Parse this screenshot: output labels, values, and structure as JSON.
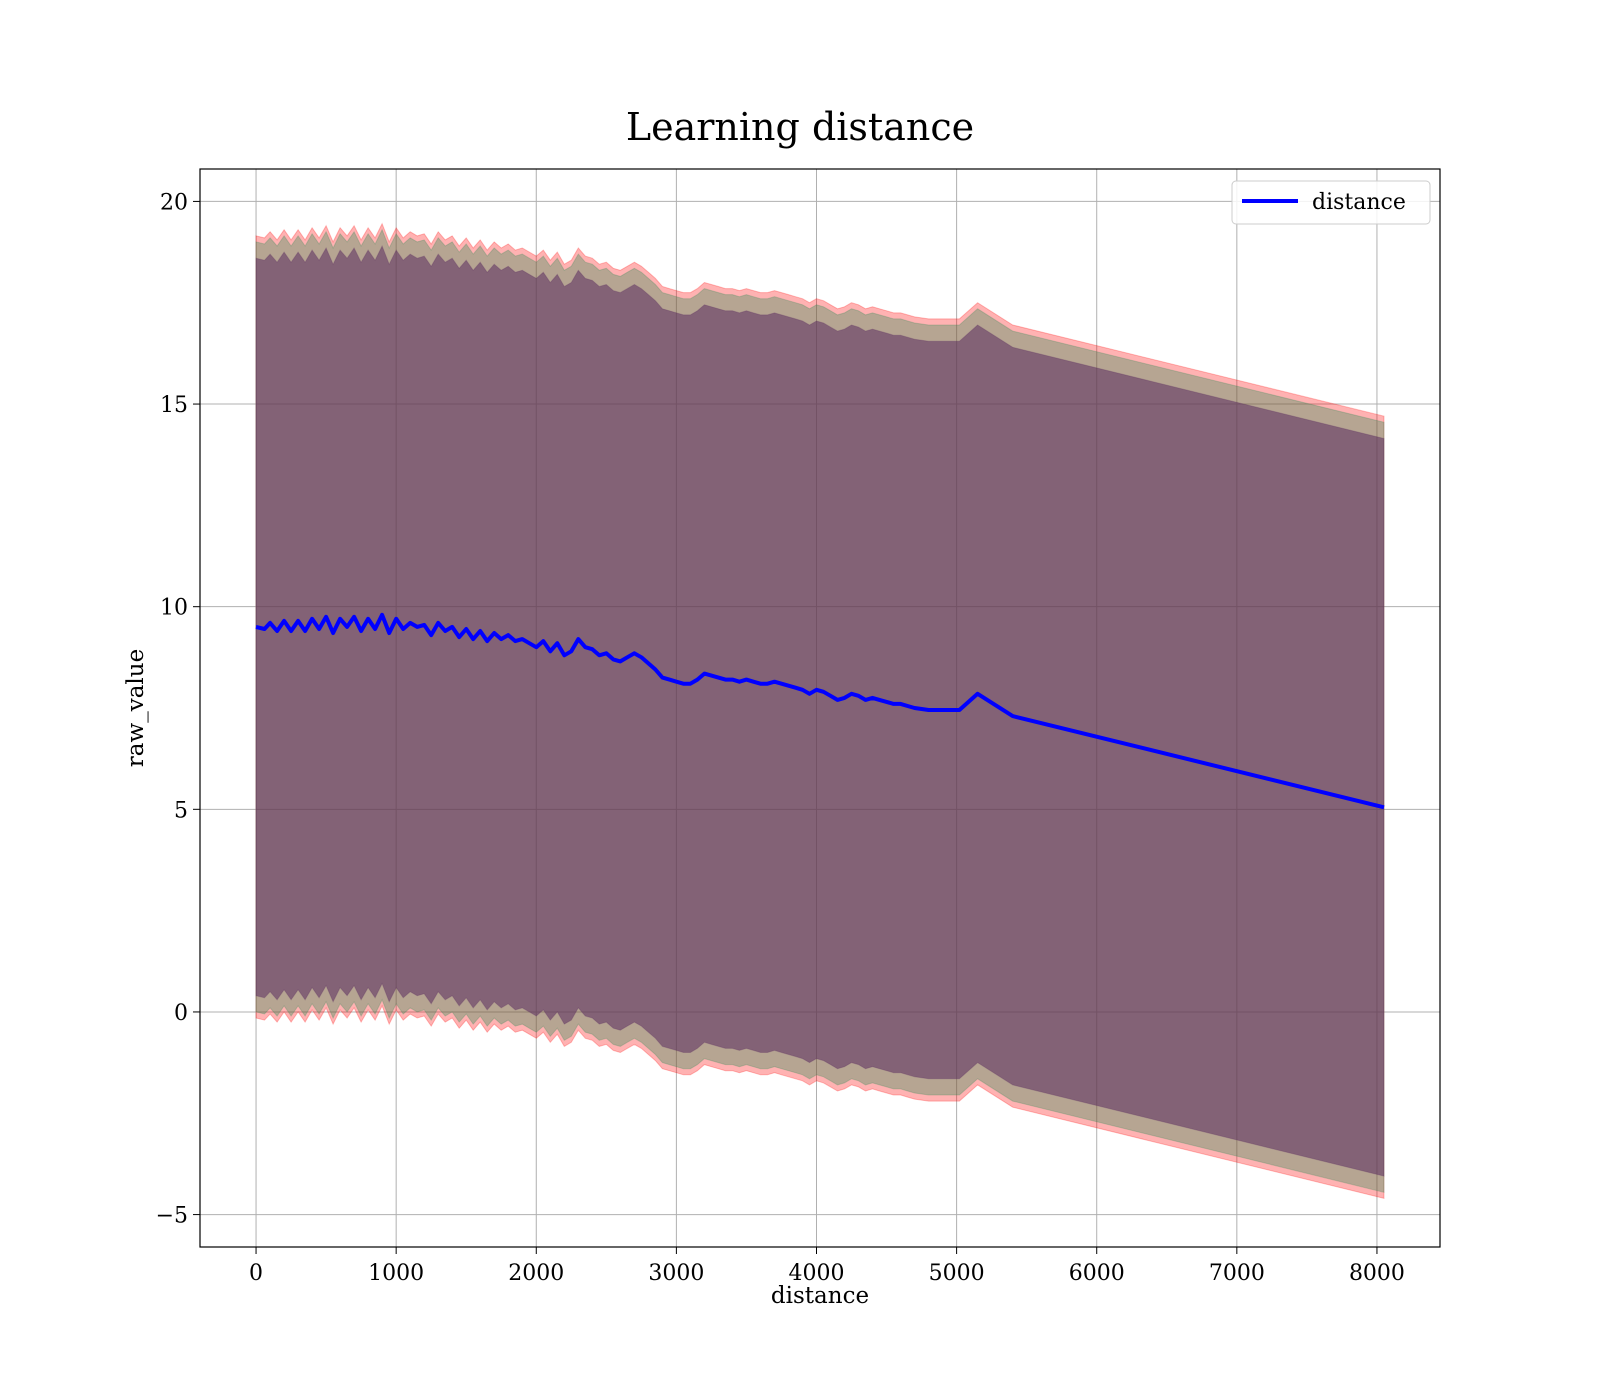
{
  "chart_data": {
    "type": "line",
    "title": "Learning distance",
    "xlabel": "distance",
    "ylabel": "raw_value",
    "xlim": [
      -400,
      8450
    ],
    "ylim": [
      -5.8,
      20.8
    ],
    "grid": true,
    "legend": {
      "placement": "top-right",
      "entries": [
        "distance"
      ]
    },
    "x_ticks": [
      "0",
      "1000",
      "2000",
      "3000",
      "4000",
      "5000",
      "6000",
      "7000",
      "8000"
    ],
    "y_ticks": [
      "−5",
      "0",
      "5",
      "10",
      "15",
      "20"
    ],
    "series": [
      {
        "name": "distance",
        "color": "#0000ff",
        "x": [
          0,
          60,
          100,
          150,
          200,
          250,
          300,
          350,
          400,
          450,
          500,
          550,
          600,
          650,
          700,
          750,
          800,
          850,
          900,
          950,
          1000,
          1050,
          1100,
          1150,
          1200,
          1250,
          1300,
          1350,
          1400,
          1450,
          1500,
          1550,
          1600,
          1650,
          1700,
          1750,
          1800,
          1850,
          1900,
          1950,
          2000,
          2050,
          2100,
          2150,
          2200,
          2250,
          2300,
          2350,
          2400,
          2450,
          2500,
          2550,
          2600,
          2650,
          2700,
          2750,
          2800,
          2850,
          2900,
          2950,
          3000,
          3050,
          3100,
          3150,
          3200,
          3250,
          3300,
          3350,
          3400,
          3450,
          3500,
          3550,
          3600,
          3650,
          3700,
          3750,
          3800,
          3850,
          3900,
          3950,
          4000,
          4050,
          4100,
          4150,
          4200,
          4250,
          4300,
          4350,
          4400,
          4450,
          4500,
          4550,
          4600,
          4650,
          4700,
          4800,
          4900,
          5020,
          5150,
          5400,
          8050
        ],
        "y": [
          9.5,
          9.45,
          9.6,
          9.4,
          9.65,
          9.4,
          9.65,
          9.4,
          9.7,
          9.45,
          9.75,
          9.35,
          9.7,
          9.5,
          9.75,
          9.4,
          9.7,
          9.45,
          9.8,
          9.35,
          9.7,
          9.45,
          9.6,
          9.5,
          9.55,
          9.3,
          9.6,
          9.4,
          9.5,
          9.25,
          9.45,
          9.2,
          9.4,
          9.15,
          9.35,
          9.2,
          9.3,
          9.15,
          9.2,
          9.1,
          9.0,
          9.15,
          8.9,
          9.1,
          8.8,
          8.9,
          9.2,
          9.0,
          8.95,
          8.8,
          8.85,
          8.7,
          8.65,
          8.75,
          8.85,
          8.75,
          8.6,
          8.45,
          8.25,
          8.2,
          8.15,
          8.1,
          8.1,
          8.2,
          8.35,
          8.3,
          8.25,
          8.2,
          8.2,
          8.15,
          8.2,
          8.15,
          8.1,
          8.1,
          8.15,
          8.1,
          8.05,
          8.0,
          7.95,
          7.85,
          7.95,
          7.9,
          7.8,
          7.7,
          7.75,
          7.85,
          7.8,
          7.7,
          7.75,
          7.7,
          7.65,
          7.6,
          7.6,
          7.55,
          7.5,
          7.45,
          7.45,
          7.45,
          7.85,
          7.3,
          5.05
        ]
      }
    ],
    "bands": [
      {
        "color": "#ff0000",
        "opacity": 0.3,
        "offset_upper": 9.65,
        "offset_lower": -9.65
      },
      {
        "color": "#2e8b57",
        "opacity": 0.35,
        "offset_upper": 9.5,
        "offset_lower": -9.5
      },
      {
        "color": "#5a2b5e",
        "opacity": 0.55,
        "offset_upper": 9.1,
        "offset_lower": -9.1
      }
    ]
  }
}
